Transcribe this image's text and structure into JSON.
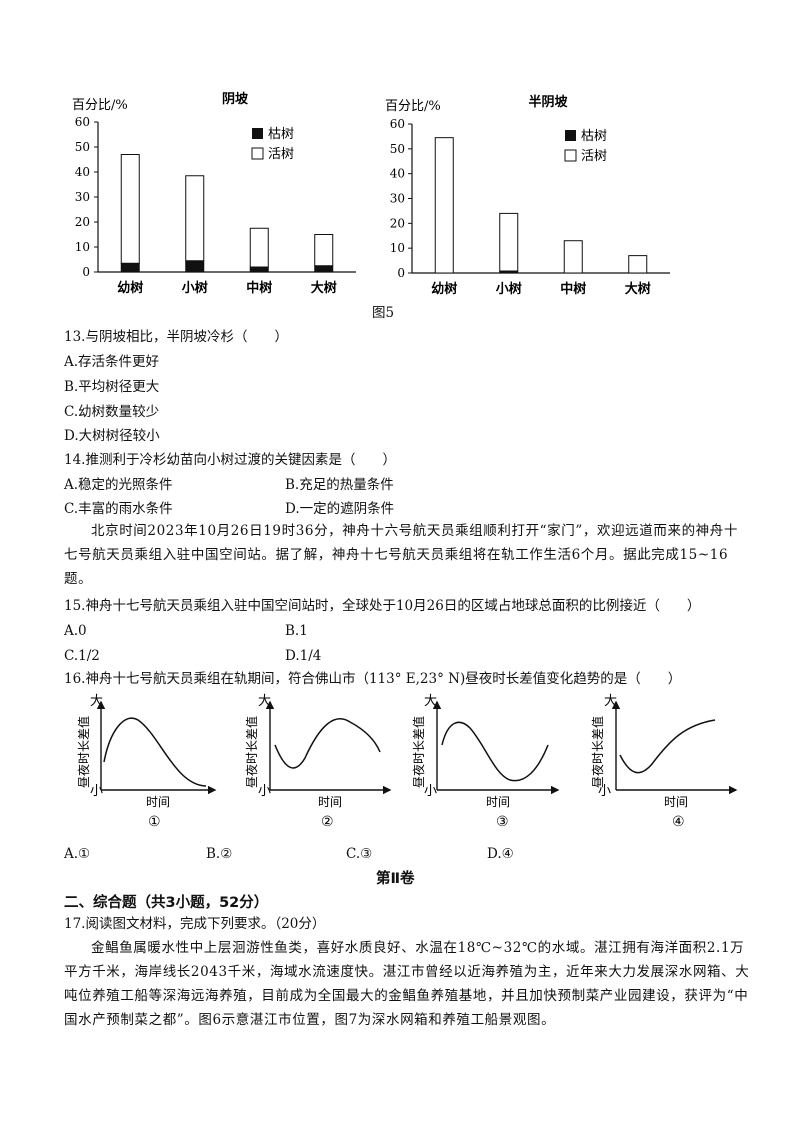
{
  "figure5": {
    "caption": "图5",
    "legend": [
      "枯树",
      "活树"
    ],
    "charts": [
      {
        "title": "阴坡",
        "ylabel": "百分比/%",
        "yticks": [
          "0",
          "10",
          "20",
          "30",
          "40",
          "50",
          "60"
        ],
        "categories": [
          "幼树",
          "小树",
          "中树",
          "大树"
        ]
      },
      {
        "title": "半阴坡",
        "ylabel": "百分比/%",
        "yticks": [
          "0",
          "10",
          "20",
          "30",
          "40",
          "50",
          "60"
        ],
        "categories": [
          "幼树",
          "小树",
          "中树",
          "大树"
        ]
      }
    ]
  },
  "chart_data": [
    {
      "type": "bar",
      "title": "阴坡",
      "ylabel": "百分比/%",
      "categories": [
        "幼树",
        "小树",
        "中树",
        "大树"
      ],
      "series": [
        {
          "name": "枯树",
          "values": [
            3.5,
            4.5,
            2,
            2.5
          ]
        },
        {
          "name": "活树",
          "values": [
            43.5,
            34,
            15.5,
            12.5
          ]
        }
      ],
      "stacked": true,
      "ylim": [
        0,
        60
      ]
    },
    {
      "type": "bar",
      "title": "半阴坡",
      "ylabel": "百分比/%",
      "categories": [
        "幼树",
        "小树",
        "中树",
        "大树"
      ],
      "series": [
        {
          "name": "枯树",
          "values": [
            0,
            0.8,
            0,
            0
          ]
        },
        {
          "name": "活树",
          "values": [
            54.5,
            23.2,
            13,
            7
          ]
        }
      ],
      "stacked": true,
      "ylim": [
        0,
        60
      ]
    }
  ],
  "q13": {
    "stem": "13.与阴坡相比，半阴坡冷杉（　　）",
    "options": [
      "A.存活条件更好",
      "B.平均树径更大",
      "C.幼树数量较少",
      "D.大树树径较小"
    ]
  },
  "q14": {
    "stem": "14.推测利于冷杉幼苗向小树过渡的关键因素是（　　）",
    "options": [
      "A.稳定的光照条件",
      "B.充足的热量条件",
      "C.丰富的雨水条件",
      "D.一定的遮阴条件"
    ]
  },
  "passage1": "北京时间2023年10月26日19时36分，神舟十六号航天员乘组顺利打开“家门”，欢迎远道而来的神舟十七号航天员乘组入驻中国空间站。据了解，神舟十七号航天员乘组将在轨工作生活6个月。据此完成15~16题。",
  "q15": {
    "stem": "15.神舟十七号航天员乘组入驻中国空间站时，全球处于10月26日的区域占地球总面积的比例接近（　　）",
    "options": [
      "A.0",
      "B.1",
      "C.1/2",
      "D.1/4"
    ]
  },
  "q16": {
    "stem": "16.神舟十七号航天员乘组在轨期间，符合佛山市（113° E,23° N)昼夜时长差值变化趋势的是（　　）",
    "graph": {
      "ylabel": "昼夜时长差值",
      "xlabel": "时间",
      "ymax": "大",
      "ymin": "小"
    },
    "graph_labels": [
      "①",
      "②",
      "③",
      "④"
    ],
    "options": [
      "A.①",
      "B.②",
      "C.③",
      "D.④"
    ]
  },
  "section_title": "第Ⅱ卷",
  "part2_title": "二、综合题（共3小题，52分）",
  "q17": {
    "stem": "17.阅读图文材料，完成下列要求。（20分）",
    "paragraph": "金鲳鱼属暖水性中上层洄游性鱼类，喜好水质良好、水温在18℃~32℃的水域。湛江拥有海洋面积2.1万平方千米，海岸线长2043千米，海域水流速度快。湛江市曾经以近海养殖为主，近年来大力发展深水网箱、大吨位养殖工船等深海远海养殖，目前成为全国最大的金鲳鱼养殖基地，并且加快预制菜产业园建设，获评为“中国水产预制菜之都”。图6示意湛江市位置，图7为深水网箱和养殖工船景观图。"
  }
}
